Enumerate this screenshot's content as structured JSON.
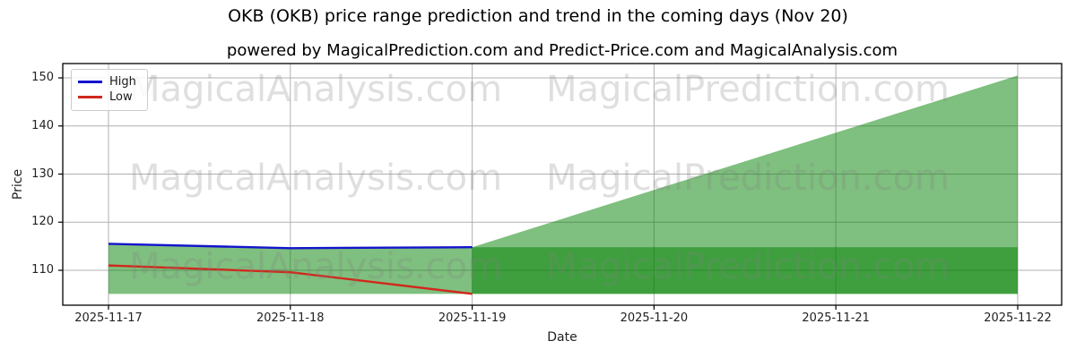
{
  "title": "OKB (OKB) price range prediction and trend in the coming days (Nov 20)",
  "subtitle": "powered by MagicalPrediction.com and Predict-Price.com and MagicalAnalysis.com",
  "watermarks": {
    "left": "MagicalAnalysis.com",
    "right": "MagicalPrediction.com"
  },
  "legend": {
    "items": [
      {
        "label": "High",
        "color": "#1414cc"
      },
      {
        "label": "Low",
        "color": "#d1281c"
      }
    ]
  },
  "chart_data": {
    "type": "line",
    "title": "OKB (OKB) price range prediction and trend in the coming days (Nov 20)",
    "subtitle": "powered by MagicalPrediction.com and Predict-Price.com and MagicalAnalysis.com",
    "xlabel": "Date",
    "ylabel": "Price",
    "x": [
      "2025-11-17",
      "2025-11-18",
      "2025-11-19",
      "2025-11-20",
      "2025-11-21",
      "2025-11-22"
    ],
    "y_ticks": [
      110,
      120,
      130,
      140,
      150
    ],
    "ylim": [
      102.7,
      153.2
    ],
    "grid": true,
    "legend_position": "upper left",
    "series": [
      {
        "name": "High",
        "color": "#1414cc",
        "x": [
          "2025-11-17",
          "2025-11-18",
          "2025-11-19"
        ],
        "values": [
          115.5,
          114.6,
          114.8
        ]
      },
      {
        "name": "Low",
        "color": "#d1281c",
        "x": [
          "2025-11-17",
          "2025-11-18",
          "2025-11-19"
        ],
        "values": [
          111.0,
          109.6,
          105.1
        ]
      }
    ],
    "areas": {
      "fill_color": "#008000",
      "fill_opacity": 0.5,
      "history_band": {
        "from": "2025-11-17",
        "to": "2025-11-19",
        "bottom": 105.1,
        "top": "High series"
      },
      "prediction_band": {
        "from": "2025-11-19",
        "to": "2025-11-22",
        "low": 105.1,
        "high": 114.8
      },
      "prediction_trend_top": {
        "from": "2025-11-19",
        "to": "2025-11-22",
        "start": 114.8,
        "end": 150.5
      }
    }
  }
}
